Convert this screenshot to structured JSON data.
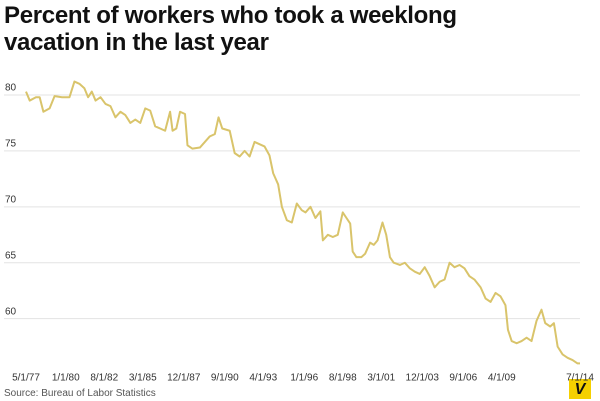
{
  "chart_data": {
    "type": "line",
    "title": "Percent of workers who took a weeklong vacation in the last year",
    "source": "Source: Bureau of Labor Statistics",
    "logo": "V",
    "x": [
      "5/1/77",
      "8/1/77",
      "1/1/78",
      "4/1/78",
      "7/1/78",
      "12/1/78",
      "4/1/79",
      "10/1/79",
      "4/1/80",
      "8/1/80",
      "12/1/80",
      "4/1/81",
      "7/1/81",
      "10/1/81",
      "1/1/82",
      "5/1/82",
      "9/1/82",
      "1/1/83",
      "5/1/83",
      "9/1/83",
      "1/1/84",
      "5/1/84",
      "9/1/84",
      "1/1/85",
      "5/1/85",
      "9/1/85",
      "1/1/86",
      "5/1/86",
      "9/1/86",
      "1/1/87",
      "3/1/87",
      "6/1/87",
      "9/1/87",
      "1/1/88",
      "3/1/88",
      "7/1/88",
      "1/1/89",
      "5/1/89",
      "9/1/89",
      "1/1/90",
      "4/1/90",
      "7/1/90",
      "1/1/91",
      "5/1/91",
      "9/1/91",
      "1/1/92",
      "5/1/92",
      "9/1/92",
      "1/1/93",
      "5/1/93",
      "9/1/93",
      "12/1/93",
      "4/1/94",
      "7/1/94",
      "11/1/94",
      "3/1/95",
      "7/1/95",
      "11/1/95",
      "2/1/96",
      "6/1/96",
      "10/1/96",
      "2/1/97",
      "4/1/97",
      "8/1/97",
      "12/1/97",
      "4/1/98",
      "8/1/98",
      "11/1/98",
      "2/1/99",
      "4/1/99",
      "7/1/99",
      "11/1/99",
      "2/1/00",
      "6/1/00",
      "9/1/00",
      "12/1/00",
      "4/1/01",
      "7/1/01",
      "10/1/01",
      "1/1/02",
      "6/1/02",
      "10/1/02",
      "2/1/03",
      "6/1/03",
      "10/1/03",
      "2/1/04",
      "6/1/04",
      "10/1/04",
      "2/1/05",
      "6/1/05",
      "10/1/05",
      "2/1/06",
      "6/1/06",
      "10/1/06",
      "2/1/07",
      "6/1/07",
      "11/1/07",
      "3/1/08",
      "7/1/08",
      "11/1/08",
      "3/1/09",
      "7/1/09",
      "9/1/09",
      "12/1/09",
      "4/1/10",
      "8/1/10",
      "12/1/10",
      "4/1/11",
      "8/1/11",
      "12/1/11",
      "3/1/12",
      "7/1/12",
      "10/1/12",
      "1/1/13",
      "5/1/13",
      "9/1/13",
      "1/1/14",
      "5/1/14",
      "7/1/14"
    ],
    "series": [
      {
        "name": "Percent of workers",
        "color": "#d9c46b",
        "values": [
          80.3,
          79.5,
          79.8,
          79.8,
          78.5,
          78.8,
          79.9,
          79.8,
          79.8,
          81.2,
          81.0,
          80.6,
          79.8,
          80.3,
          79.5,
          79.8,
          79.2,
          79.0,
          78.0,
          78.5,
          78.2,
          77.5,
          77.8,
          77.5,
          78.8,
          78.6,
          77.2,
          77.0,
          76.8,
          78.5,
          76.8,
          77.0,
          78.5,
          78.3,
          75.5,
          75.2,
          75.3,
          75.8,
          76.3,
          76.5,
          78.0,
          77.0,
          76.8,
          74.8,
          74.5,
          75.0,
          74.5,
          75.8,
          75.6,
          75.4,
          74.6,
          73.0,
          72.0,
          70.0,
          68.8,
          68.6,
          70.3,
          69.7,
          69.5,
          70.0,
          69.0,
          69.6,
          67.0,
          67.5,
          67.3,
          67.5,
          69.5,
          69.0,
          68.5,
          66.0,
          65.5,
          65.5,
          65.8,
          66.8,
          66.6,
          67.0,
          68.6,
          67.5,
          65.5,
          65.0,
          64.8,
          65.0,
          64.5,
          64.2,
          64.0,
          64.6,
          63.8,
          62.8,
          63.3,
          63.5,
          65.0,
          64.6,
          64.8,
          64.5,
          63.8,
          63.5,
          62.8,
          61.8,
          61.5,
          62.3,
          62.0,
          61.2,
          59.0,
          58.0,
          57.8,
          58.0,
          58.3,
          58.0,
          59.8,
          60.8,
          59.6,
          59.3,
          59.6,
          57.5,
          56.8,
          56.5,
          56.3,
          56.0,
          56.0
        ]
      }
    ],
    "xlim": [
      "5/1/77",
      "7/1/14"
    ],
    "xticks": [
      "5/1/77",
      "1/1/80",
      "8/1/82",
      "3/1/85",
      "12/1/87",
      "9/1/90",
      "4/1/93",
      "1/1/96",
      "8/1/98",
      "3/1/01",
      "12/1/03",
      "9/1/06",
      "4/1/09",
      "7/1/14"
    ],
    "ylim": [
      55.5,
      82
    ],
    "yticks": [
      60,
      65,
      70,
      75,
      80
    ],
    "grid": true
  }
}
